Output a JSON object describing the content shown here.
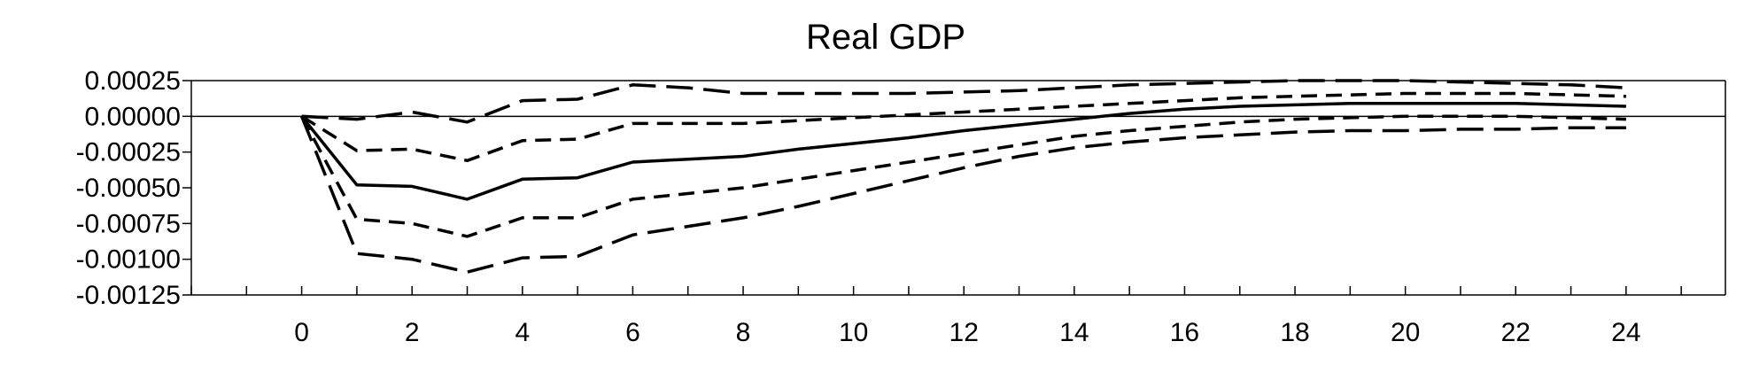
{
  "chart_data": {
    "type": "line",
    "title": "Real GDP",
    "xlabel": "",
    "ylabel": "",
    "x": [
      0,
      1,
      2,
      3,
      4,
      5,
      6,
      7,
      8,
      9,
      10,
      11,
      12,
      13,
      14,
      15,
      16,
      17,
      18,
      19,
      20,
      21,
      22,
      23,
      24
    ],
    "xlim": [
      -2,
      25.8
    ],
    "ylim": [
      -0.00125,
      0.00025
    ],
    "x_ticks": [
      0,
      2,
      4,
      6,
      8,
      10,
      12,
      14,
      16,
      18,
      20,
      22,
      24
    ],
    "x_tick_labels": [
      "0",
      "2",
      "4",
      "6",
      "8",
      "10",
      "12",
      "14",
      "16",
      "18",
      "20",
      "22",
      "24"
    ],
    "y_ticks": [
      0.00025,
      0.0,
      -0.00025,
      -0.0005,
      -0.00075,
      -0.001,
      -0.00125
    ],
    "y_tick_labels": [
      "0.00025",
      "0.00000",
      "-0.00025",
      "-0.00050",
      "-0.00075",
      "-0.00100",
      "-0.00125"
    ],
    "zero_line": true,
    "grid": false,
    "legend": "none",
    "series": [
      {
        "style": "solid",
        "values": [
          0,
          -0.00048,
          -0.00049,
          -0.00058,
          -0.00044,
          -0.00043,
          -0.00032,
          -0.0003,
          -0.00028,
          -0.00023,
          -0.00019,
          -0.00015,
          -0.0001,
          -6e-05,
          -2e-05,
          2e-05,
          5e-05,
          7e-05,
          8e-05,
          9e-05,
          9e-05,
          9e-05,
          9e-05,
          8e-05,
          7e-05
        ]
      },
      {
        "style": "dashed",
        "values": [
          0,
          -0.00024,
          -0.00023,
          -0.00031,
          -0.00017,
          -0.00016,
          -5e-05,
          -5e-05,
          -5e-05,
          -3e-05,
          -1e-05,
          1e-05,
          3e-05,
          5e-05,
          7e-05,
          9e-05,
          0.00011,
          0.00013,
          0.00014,
          0.00015,
          0.00016,
          0.00016,
          0.00016,
          0.00015,
          0.00014
        ]
      },
      {
        "style": "dashed",
        "values": [
          0,
          -0.00072,
          -0.00075,
          -0.00084,
          -0.00071,
          -0.00071,
          -0.00058,
          -0.00054,
          -0.0005,
          -0.00044,
          -0.00038,
          -0.00032,
          -0.00026,
          -0.0002,
          -0.00014,
          -0.0001,
          -7e-05,
          -4e-05,
          -2e-05,
          -1e-05,
          0,
          0,
          0,
          -1e-05,
          -2e-05
        ]
      },
      {
        "style": "long-dashed",
        "values": [
          0,
          -2e-05,
          3e-05,
          -4e-05,
          0.00011,
          0.00012,
          0.00022,
          0.0002,
          0.00016,
          0.00016,
          0.00016,
          0.00016,
          0.00017,
          0.00018,
          0.0002,
          0.00022,
          0.00023,
          0.00024,
          0.00025,
          0.00025,
          0.00025,
          0.00024,
          0.00023,
          0.00022,
          0.0002
        ]
      },
      {
        "style": "long-dashed",
        "values": [
          0,
          -0.00096,
          -0.001,
          -0.00109,
          -0.00099,
          -0.00098,
          -0.00083,
          -0.00077,
          -0.00071,
          -0.00063,
          -0.00054,
          -0.00045,
          -0.00036,
          -0.00028,
          -0.00022,
          -0.00018,
          -0.00015,
          -0.00013,
          -0.00011,
          -0.0001,
          -0.0001,
          -9e-05,
          -9e-05,
          -8e-05,
          -8e-05
        ]
      }
    ]
  }
}
